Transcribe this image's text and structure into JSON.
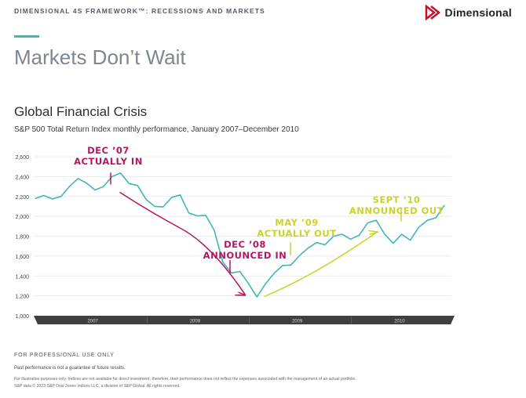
{
  "header": {
    "framework_title": "DIMENSIONAL 4S FRAMEWORK™: RECESSIONS AND MARKETS",
    "logo_text": "Dimensional"
  },
  "page_title": "Markets Don’t Wait",
  "colors": {
    "line": "#3fb7b3",
    "decline_arrow": "#b5175e",
    "recovery_arrow": "#c9d32b",
    "axis_band": "#3d3f43",
    "logo_red": "#c8102e"
  },
  "chart_data": {
    "type": "line",
    "title": "Global Financial Crisis",
    "subtitle": "S&P 500 Total Return Index monthly performance, January 2007–December 2010",
    "ylim": [
      1000,
      2600
    ],
    "yticks": [
      "1,000",
      "1,200",
      "1,400",
      "1,600",
      "1,800",
      "2,000",
      "2,200",
      "2,400",
      "2,600"
    ],
    "year_labels": [
      "2007",
      "2008",
      "2009",
      "2010"
    ],
    "series": [
      {
        "values": [
          2180,
          2210,
          2175,
          2200,
          2300,
          2380,
          2335,
          2265,
          2300,
          2400,
          2435,
          2330,
          2310,
          2170,
          2100,
          2095,
          2190,
          2215,
          2035,
          2005,
          2010,
          1860,
          1540,
          1430,
          1445,
          1325,
          1190,
          1320,
          1425,
          1505,
          1510,
          1605,
          1680,
          1735,
          1715,
          1800,
          1820,
          1770,
          1810,
          1935,
          1960,
          1820,
          1730,
          1820,
          1760,
          1890,
          1960,
          1985,
          2110
        ]
      }
    ],
    "annotations": [
      {
        "lines": [
          "DEC ’07",
          "ACTUALLY IN"
        ],
        "color": "#b5175e"
      },
      {
        "lines": [
          "DEC ’08",
          "ANNOUNCED IN"
        ],
        "color": "#b5175e"
      },
      {
        "lines": [
          "MAY ’09",
          "ACTUALLY OUT"
        ],
        "color": "#c9d32b"
      },
      {
        "lines": [
          "SEPT ’10",
          "ANNOUNCED OUT"
        ],
        "color": "#c9d32b"
      }
    ]
  },
  "footer": {
    "professional": "FOR PROFESSIONAL USE ONLY",
    "past_performance": "Past performance is not a guarantee of future results.",
    "illustrative": "For illustrative purposes only. Indices are not available for direct investment; therefore, their performance does not reflect the expenses associated with the management of an actual portfolio.",
    "copyright": "S&P data © 2023 S&P Dow Jones Indices LLC, a division of S&P Global. All rights reserved."
  }
}
